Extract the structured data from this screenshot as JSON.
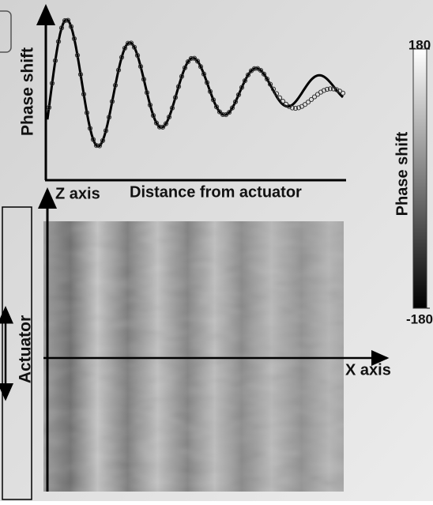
{
  "figure": {
    "plot": {
      "y_label": "Phase shift",
      "x_label": "Distance from actuator"
    },
    "image": {
      "z_axis_label": "Z axis",
      "x_axis_label": "X axis",
      "actuator_label": "Actuator"
    },
    "colorbar": {
      "label": "Phase shift",
      "lim": [
        -180,
        180
      ],
      "ticks": [
        180,
        -180
      ]
    }
  }
}
